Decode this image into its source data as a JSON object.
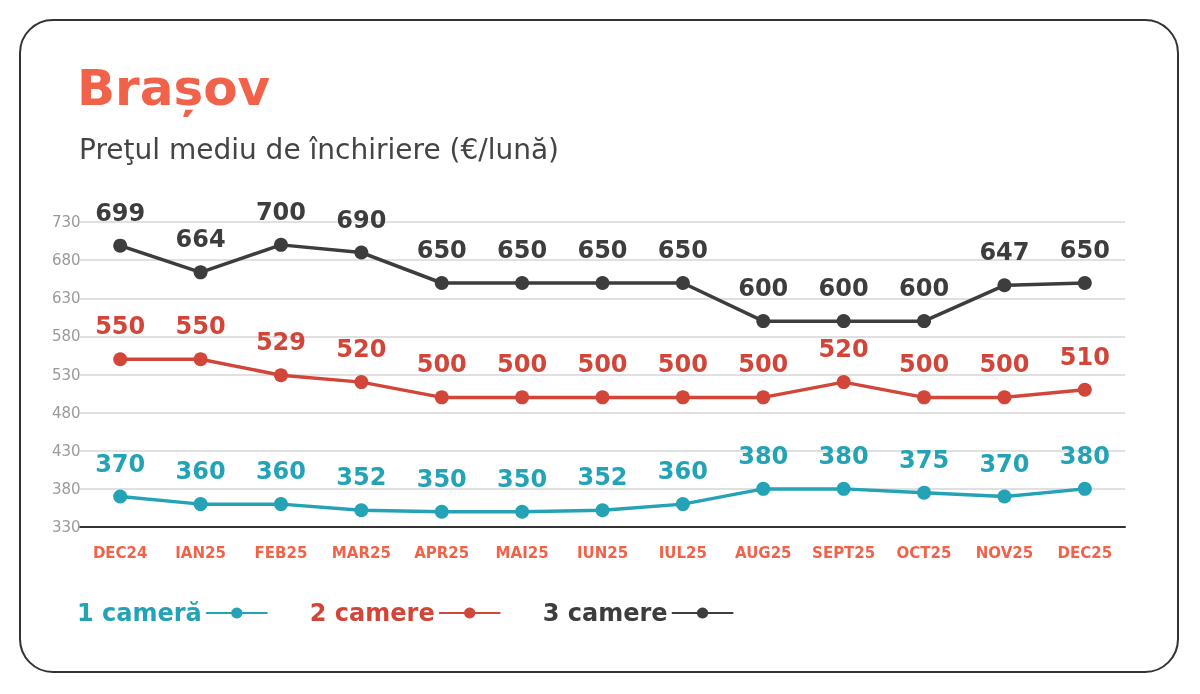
{
  "chart_data": {
    "type": "line",
    "title": "Brașov",
    "subtitle": "Preţul mediu de închiriere (€/lună)",
    "categories": [
      "DEC24",
      "IAN25",
      "FEB25",
      "MAR25",
      "APR25",
      "MAI25",
      "IUN25",
      "IUL25",
      "AUG25",
      "SEPT25",
      "OCT25",
      "NOV25",
      "DEC25"
    ],
    "series": [
      {
        "name": "1 cameră",
        "color": "#23a3b5",
        "values": [
          370,
          360,
          360,
          352,
          350,
          350,
          352,
          360,
          380,
          380,
          375,
          370,
          380
        ]
      },
      {
        "name": "2 camere",
        "color": "#d2463a",
        "values": [
          550,
          550,
          529,
          520,
          500,
          500,
          500,
          500,
          500,
          520,
          500,
          500,
          510
        ]
      },
      {
        "name": "3 camere",
        "color": "#3d3d3d",
        "values": [
          699,
          664,
          700,
          690,
          650,
          650,
          650,
          650,
          600,
          600,
          600,
          647,
          650
        ]
      }
    ],
    "ylim": [
      330,
      730
    ],
    "yticks": [
      330,
      380,
      430,
      480,
      530,
      580,
      630,
      680,
      730
    ],
    "grid": "y",
    "legend": "bottom left",
    "data_labels": true,
    "marker": "circle",
    "line_style": "solid"
  }
}
